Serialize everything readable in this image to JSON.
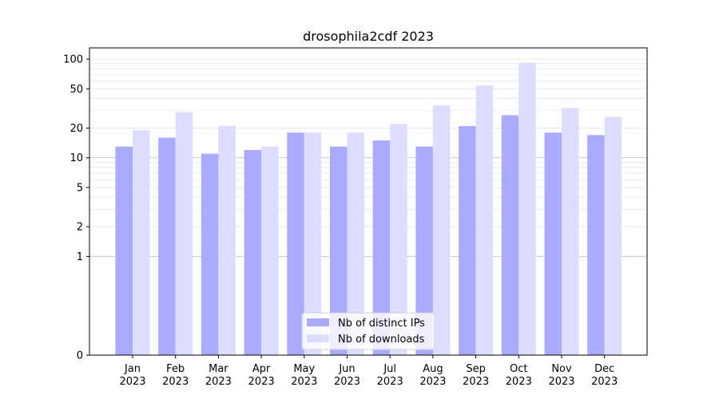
{
  "chart_data": {
    "type": "bar",
    "title": "drosophila2cdf 2023",
    "xlabel": "",
    "ylabel": "",
    "scale": "symlog",
    "ylim": [
      0,
      130
    ],
    "yticks": [
      0,
      1,
      2,
      5,
      10,
      20,
      50,
      100
    ],
    "ytick_labels": [
      "0",
      "1",
      "2",
      "5",
      "10",
      "20",
      "50",
      "100"
    ],
    "categories": [
      "Jan\n2023",
      "Feb\n2023",
      "Mar\n2023",
      "Apr\n2023",
      "May\n2023",
      "Jun\n2023",
      "Jul\n2023",
      "Aug\n2023",
      "Sep\n2023",
      "Oct\n2023",
      "Nov\n2023",
      "Dec\n2023"
    ],
    "category_lines": [
      [
        "Jan",
        "2023"
      ],
      [
        "Feb",
        "2023"
      ],
      [
        "Mar",
        "2023"
      ],
      [
        "Apr",
        "2023"
      ],
      [
        "May",
        "2023"
      ],
      [
        "Jun",
        "2023"
      ],
      [
        "Jul",
        "2023"
      ],
      [
        "Aug",
        "2023"
      ],
      [
        "Sep",
        "2023"
      ],
      [
        "Oct",
        "2023"
      ],
      [
        "Nov",
        "2023"
      ],
      [
        "Dec",
        "2023"
      ]
    ],
    "series": [
      {
        "name": "Nb of distinct IPs",
        "color": "#aaaaff",
        "values": [
          13,
          16,
          11,
          12,
          18,
          13,
          15,
          13,
          21,
          27,
          18,
          17
        ]
      },
      {
        "name": "Nb of downloads",
        "color": "#ddddff",
        "values": [
          19,
          29,
          21,
          13,
          18,
          18,
          22,
          34,
          54,
          92,
          32,
          26
        ]
      }
    ],
    "legend": "lower-center",
    "grid": "horizontal, major and minor"
  }
}
